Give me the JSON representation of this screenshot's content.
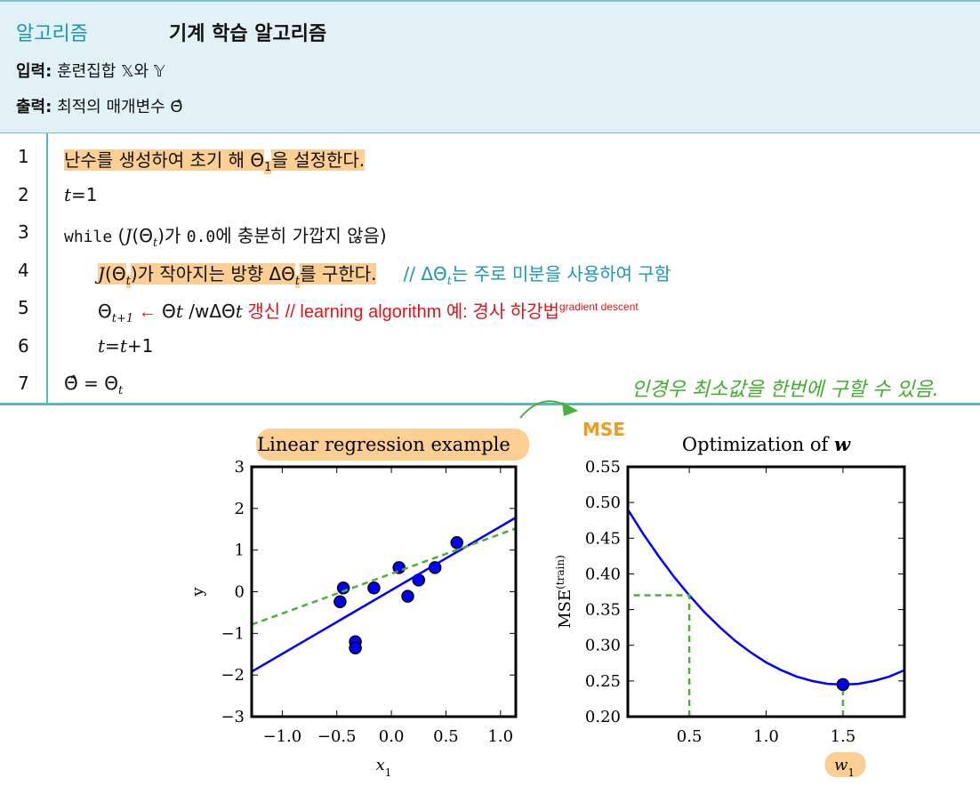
{
  "header": {
    "label": "알고리즘",
    "title": "기계 학습 알고리즘",
    "input": {
      "label": "입력:",
      "text": "훈련집합 𝕏와 𝕐"
    },
    "output": {
      "label": "출력:",
      "text": "최적의 매개변수 Θ̂"
    }
  },
  "algorithm": {
    "lines": [
      {
        "number": 1,
        "indent": 0,
        "runs": [
          {
            "text": "난수를 생성하여 초기 해 Θ",
            "style": "hl"
          },
          {
            "text": "1",
            "style": "hl sub"
          },
          {
            "text": "을 설정한다.",
            "style": "hl"
          }
        ]
      },
      {
        "number": 2,
        "indent": 0,
        "runs": [
          {
            "text": "t",
            "style": "it"
          },
          {
            "text": "=1",
            "style": ""
          }
        ]
      },
      {
        "number": 3,
        "indent": 0,
        "runs": [
          {
            "text": "while",
            "style": "mono"
          },
          {
            "text": " (",
            "style": ""
          },
          {
            "text": "J",
            "style": "it"
          },
          {
            "text": "(Θ",
            "style": ""
          },
          {
            "text": "t",
            "style": "it sub"
          },
          {
            "text": ")가 ",
            "style": ""
          },
          {
            "text": "0.0",
            "style": "mono"
          },
          {
            "text": "에 충분히 가깝지 않음)",
            "style": ""
          }
        ]
      },
      {
        "number": 4,
        "indent": 1,
        "runs": [
          {
            "text": "J",
            "style": "hl it"
          },
          {
            "text": "(Θ",
            "style": "hl"
          },
          {
            "text": "t",
            "style": "hl it sub"
          },
          {
            "text": ")가 작아지는 방향 ΔΘ",
            "style": "hl"
          },
          {
            "text": "t",
            "style": "hl it sub"
          },
          {
            "text": "를 구한다.",
            "style": "hl"
          },
          {
            "text": "// ΔΘ",
            "style": "teal gap"
          },
          {
            "text": "t",
            "style": "teal it sub"
          },
          {
            "text": "는 주로 미분을 사용하여 구함",
            "style": "teal"
          }
        ]
      },
      {
        "number": 5,
        "indent": 1,
        "runs": [
          {
            "text": "Θ",
            "style": ""
          },
          {
            "text": "t+1",
            "style": "it sub"
          },
          {
            "text": " ←",
            "style": "red"
          },
          {
            "text": " Θ",
            "style": ""
          },
          {
            "text": "t",
            "style": "it"
          },
          {
            "text": " /wΔΘ",
            "style": ""
          },
          {
            "text": "t",
            "style": "it"
          },
          {
            "text": " 갱신 // learning algorithm 예: 경사 하강법",
            "style": "red"
          },
          {
            "text": "gradient descent",
            "style": "red tiny"
          }
        ]
      },
      {
        "number": 6,
        "indent": 1,
        "runs": [
          {
            "text": "t",
            "style": "it"
          },
          {
            "text": "=",
            "style": ""
          },
          {
            "text": "t",
            "style": "it"
          },
          {
            "text": "+1",
            "style": ""
          }
        ]
      },
      {
        "number": 7,
        "indent": 0,
        "runs": [
          {
            "text": "Θ̂ = Θ",
            "style": ""
          },
          {
            "text": "t",
            "style": "it sub"
          }
        ]
      }
    ]
  },
  "annotations": {
    "mse_note": "MSE",
    "handwritten_note": "인경우 최소값을 한번에 구할 수 있음."
  },
  "chart_data": [
    {
      "type": "scatter",
      "title": [
        {
          "text": "Linear regression example",
          "style": ""
        }
      ],
      "title_highlight": true,
      "xlabel": [
        {
          "text": "x",
          "style": "it"
        },
        {
          "text": "1",
          "style": "sub"
        }
      ],
      "ylabel": [
        {
          "text": "y",
          "style": ""
        }
      ],
      "xlim": [
        -1.28,
        1.14
      ],
      "ylim": [
        -3,
        3
      ],
      "xticks": [
        {
          "value": -1,
          "label": "−1.0"
        },
        {
          "value": -0.5,
          "label": "−0.5"
        },
        {
          "value": 0,
          "label": "0.0"
        },
        0.5,
        {
          "value": 1,
          "label": "1.0"
        }
      ],
      "yticks": [
        {
          "value": -3,
          "label": "−3"
        },
        {
          "value": -2,
          "label": "−2"
        },
        {
          "value": -1,
          "label": "−1"
        },
        0,
        1,
        2,
        3
      ],
      "series": [
        {
          "kind": "scatter",
          "color": "#0000ff",
          "x": [
            -0.44,
            -0.47,
            -0.16,
            -0.33,
            -0.33,
            0.07,
            0.15,
            0.25,
            0.4,
            0.6
          ],
          "y": [
            0.09,
            -0.24,
            0.09,
            -1.2,
            -1.35,
            0.58,
            -0.11,
            0.28,
            0.58,
            1.18
          ]
        },
        {
          "kind": "line",
          "color": "#0000ff",
          "x": [
            -1.28,
            1.14
          ],
          "y": [
            -1.92,
            1.78
          ]
        },
        {
          "kind": "line",
          "color": "#4caf3a",
          "dash": true,
          "x": [
            -1.28,
            1.14
          ],
          "y": [
            -0.79,
            1.52
          ]
        }
      ]
    },
    {
      "type": "line",
      "title": [
        {
          "text": "Optimization of ",
          "style": ""
        },
        {
          "text": "w",
          "style": "bi"
        }
      ],
      "xlabel": [
        {
          "text": "w",
          "style": "it"
        },
        {
          "text": "1",
          "style": "sub"
        }
      ],
      "xlabel_highlight": true,
      "ylabel": [
        {
          "text": "MSE",
          "style": ""
        },
        {
          "text": "(train)",
          "style": "sup"
        }
      ],
      "xlim": [
        0.1,
        1.9
      ],
      "ylim": [
        0.2,
        0.55
      ],
      "xticks": [
        0.5,
        {
          "value": 1,
          "label": "1.0"
        },
        1.5
      ],
      "yticks": [
        {
          "value": 0.2,
          "label": "0.20"
        },
        0.25,
        {
          "value": 0.3,
          "label": "0.30"
        },
        0.35,
        {
          "value": 0.4,
          "label": "0.40"
        },
        0.45,
        {
          "value": 0.5,
          "label": "0.50"
        },
        0.55
      ],
      "series": [
        {
          "kind": "line",
          "color": "#0000ff",
          "x": [
            0.1,
            0.2,
            0.3,
            0.4,
            0.5,
            0.6,
            0.7,
            0.8,
            0.9,
            1.0,
            1.1,
            1.2,
            1.3,
            1.4,
            1.5,
            1.6,
            1.7,
            1.8,
            1.9
          ],
          "y": [
            0.49,
            0.456,
            0.425,
            0.396,
            0.37,
            0.346,
            0.325,
            0.306,
            0.29,
            0.276,
            0.265,
            0.256,
            0.25,
            0.246,
            0.245,
            0.246,
            0.25,
            0.256,
            0.265
          ]
        },
        {
          "kind": "line",
          "color": "#4caf3a",
          "dash": true,
          "x": [
            0.5,
            0.5,
            0.1
          ],
          "y": [
            0.2,
            0.37,
            0.37
          ]
        },
        {
          "kind": "line",
          "color": "#4caf3a",
          "dash": true,
          "x": [
            1.5,
            1.5
          ],
          "y": [
            0.2,
            0.245
          ]
        },
        {
          "kind": "scatter",
          "color": "#0000ff",
          "x": [
            1.5
          ],
          "y": [
            0.245
          ]
        }
      ]
    }
  ]
}
